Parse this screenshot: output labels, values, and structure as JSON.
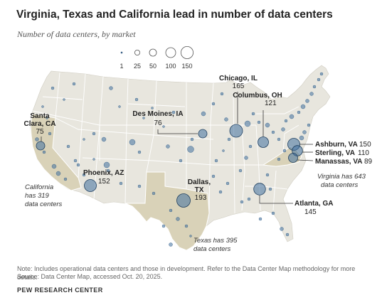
{
  "title": "Virginia, Texas and California lead in number of data centers",
  "subtitle": "Number of data centers, by market",
  "legend": [
    {
      "label": "1",
      "value": 1
    },
    {
      "label": "25",
      "value": 25
    },
    {
      "label": "50",
      "value": 50
    },
    {
      "label": "100",
      "value": 100
    },
    {
      "label": "150",
      "value": 150
    }
  ],
  "markets": [
    {
      "id": "chicago",
      "name": "Chicago, IL",
      "value": "165",
      "count": 165
    },
    {
      "id": "columbus",
      "name": "Columbus, OH",
      "value": "121",
      "count": 121
    },
    {
      "id": "desmoines",
      "name": "Des Moines, IA",
      "value": "76",
      "count": 76
    },
    {
      "id": "santaclara",
      "name": "Santa Clara, CA",
      "name_line1": "Santa",
      "name_line2": "Clara, CA",
      "value": "75",
      "count": 75
    },
    {
      "id": "phoenix",
      "name": "Phoenix, AZ",
      "value": "152",
      "count": 152
    },
    {
      "id": "dallas",
      "name": "Dallas, TX",
      "name_line1": "Dallas,",
      "name_line2": "TX",
      "value": "193",
      "count": 193
    },
    {
      "id": "atlanta",
      "name": "Atlanta, GA",
      "value": "145",
      "count": 145
    },
    {
      "id": "ashburn",
      "name": "Ashburn, VA",
      "value": "150",
      "count": 150
    },
    {
      "id": "sterling",
      "name": "Sterling, VA",
      "value": "110",
      "count": 110
    },
    {
      "id": "manassas",
      "name": "Manassas, VA",
      "value": "89",
      "count": 89
    }
  ],
  "state_notes": {
    "california": {
      "line1": "California",
      "line2": "has 319",
      "line3": "data centers"
    },
    "texas": {
      "line1": "Texas has 395",
      "line2": "data centers"
    },
    "virginia": {
      "line1": "Virginia has 643",
      "line2": "data centers"
    }
  },
  "colors": {
    "land": "#e8e6de",
    "highlight_state": "#d9d2b8",
    "border": "#ffffff",
    "bubble_fill": "#3f6f9f",
    "bubble_stroke": "#1f3f5f",
    "label_line": "#333333"
  },
  "note": "Note: Includes operational data centers and those in development. Refer to the Data Center Map methodology for more details.",
  "source": "Source: Data Center Map, accessed Oct. 20, 2025.",
  "org": "PEW RESEARCH CENTER"
}
